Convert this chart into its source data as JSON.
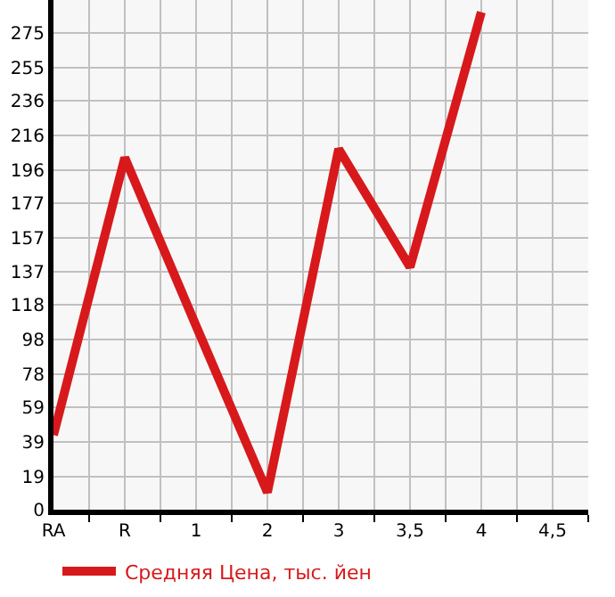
{
  "chart_data": {
    "type": "line",
    "categories": [
      "RA",
      "R",
      "1",
      "2",
      "3",
      "3,5",
      "4",
      "4,5"
    ],
    "series": [
      {
        "name": "Средняя Цена, тыс. йен",
        "color": "#d7191c",
        "values": [
          43,
          203,
          106,
          10,
          208,
          140,
          287,
          null
        ]
      }
    ],
    "ylim": [
      0,
      294
    ],
    "yticks": [
      0,
      19,
      39,
      59,
      78,
      98,
      118,
      137,
      157,
      177,
      196,
      216,
      236,
      255,
      275
    ],
    "grid": true,
    "legend": "bottom",
    "marker": "none",
    "line_style": "solid"
  }
}
